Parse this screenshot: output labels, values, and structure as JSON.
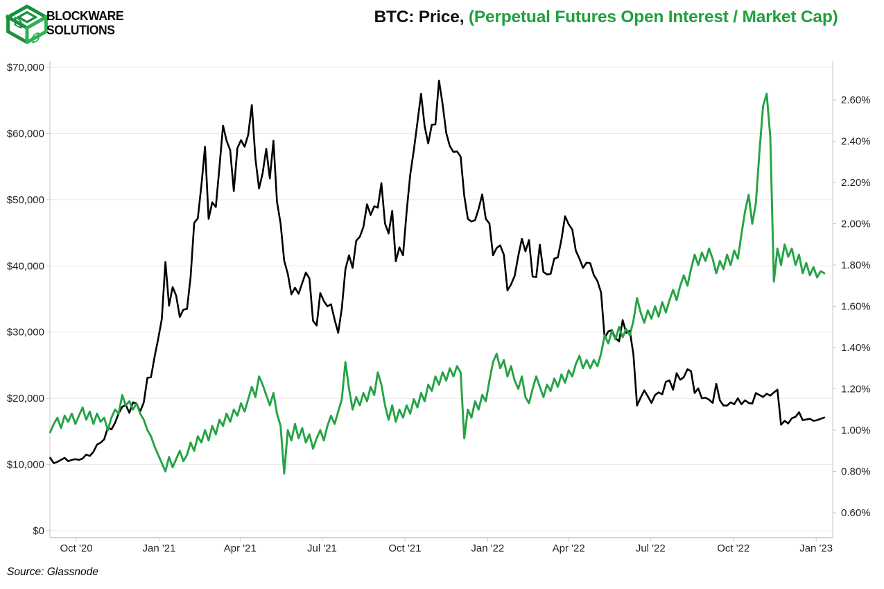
{
  "header": {
    "brand_line1": "BLOCKWARE",
    "brand_line2": "SOLUTIONS",
    "title_black": "BTC: Price, ",
    "title_green": "(Perpetual Futures Open Interest / Market Cap)"
  },
  "footer": {
    "source": "Source: Glassnode"
  },
  "colors": {
    "title_green": "#1ea13c",
    "line_black": "#000000",
    "line_green": "#24a344",
    "grid": "#e8e8e8",
    "axis_border": "#c6c6c6",
    "bottom_border": "#b9b9b9",
    "tick_text": "#1f1f1f",
    "logo_green_dark": "#18913e",
    "logo_green_light": "#2eb254"
  },
  "chart_data": {
    "type": "line",
    "title": "BTC: Price, (Perpetual Futures Open Interest / Market Cap)",
    "grid": true,
    "legend_position": "none",
    "start_date": "2020-09-02",
    "end_date": "2023-01-10",
    "step_days": 4,
    "x_ticks": [
      {
        "label": "Oct '20",
        "day": 29
      },
      {
        "label": "Jan '21",
        "day": 121
      },
      {
        "label": "Apr '21",
        "day": 211
      },
      {
        "label": "Jul '21",
        "day": 302
      },
      {
        "label": "Oct '21",
        "day": 394
      },
      {
        "label": "Jan '22",
        "day": 486
      },
      {
        "label": "Apr '22",
        "day": 576
      },
      {
        "label": "Jul '22",
        "day": 667
      },
      {
        "label": "Oct '22",
        "day": 759
      },
      {
        "label": "Jan '23",
        "day": 851
      }
    ],
    "y_left": {
      "name": "BTC Price (USD)",
      "min": 0,
      "max": 70000,
      "ticks": [
        {
          "label": "$70,000",
          "value": 70
        },
        {
          "label": "$60,000",
          "value": 60
        },
        {
          "label": "$50,000",
          "value": 50
        },
        {
          "label": "$40,000",
          "value": 40
        },
        {
          "label": "$30,000",
          "value": 30
        },
        {
          "label": "$20,000",
          "value": 20
        },
        {
          "label": "$10,000",
          "value": 10
        },
        {
          "label": "$0",
          "value": 0
        }
      ]
    },
    "y_right": {
      "name": "Perpetual Futures Open Interest / Market Cap",
      "min": 0.6,
      "max": 2.6,
      "ticks": [
        {
          "label": "2.60%",
          "value": 2.6
        },
        {
          "label": "2.40%",
          "value": 2.4
        },
        {
          "label": "2.20%",
          "value": 2.2
        },
        {
          "label": "2.00%",
          "value": 2.0
        },
        {
          "label": "1.80%",
          "value": 1.8
        },
        {
          "label": "1.60%",
          "value": 1.6
        },
        {
          "label": "1.40%",
          "value": 1.4
        },
        {
          "label": "1.20%",
          "value": 1.2
        },
        {
          "label": "1.00%",
          "value": 1.0
        },
        {
          "label": "0.80%",
          "value": 0.8
        },
        {
          "label": "0.60%",
          "value": 0.6
        }
      ]
    },
    "series": [
      {
        "name": "BTC Price",
        "axis": "left",
        "units": "USD thousands",
        "color": "#000000",
        "values": [
          11.0,
          10.2,
          10.4,
          10.7,
          11.0,
          10.5,
          10.7,
          10.8,
          10.7,
          10.9,
          11.5,
          11.3,
          11.9,
          13.0,
          13.3,
          13.8,
          15.6,
          15.3,
          16.3,
          17.7,
          18.7,
          19.0,
          17.8,
          19.4,
          19.2,
          18.0,
          19.4,
          23.1,
          23.2,
          26.3,
          29.0,
          32.0,
          40.6,
          34.0,
          36.8,
          35.5,
          32.3,
          33.4,
          33.5,
          38.3,
          46.5,
          47.2,
          52.2,
          58.0,
          47.1,
          49.6,
          48.9,
          54.9,
          61.2,
          58.9,
          57.5,
          51.3,
          57.8,
          59.0,
          58.0,
          59.8,
          64.3,
          56.2,
          51.7,
          54.0,
          57.7,
          53.2,
          58.9,
          49.7,
          46.4,
          40.8,
          38.8,
          35.7,
          36.7,
          35.8,
          37.4,
          39.0,
          38.1,
          31.7,
          31.0,
          35.9,
          34.7,
          33.9,
          34.2,
          31.9,
          29.9,
          33.6,
          39.5,
          41.6,
          39.7,
          43.8,
          44.4,
          45.9,
          49.3,
          47.7,
          49.0,
          48.8,
          52.5,
          46.4,
          44.9,
          48.3,
          40.7,
          42.8,
          41.6,
          48.2,
          53.8,
          57.5,
          61.7,
          66.0,
          61.1,
          58.5,
          61.3,
          61.4,
          68.0,
          64.4,
          60.1,
          58.1,
          57.2,
          57.3,
          56.5,
          50.6,
          47.1,
          46.7,
          46.9,
          48.6,
          50.8,
          47.1,
          46.4,
          41.6,
          42.7,
          43.1,
          41.7,
          36.3,
          37.2,
          38.5,
          41.5,
          44.1,
          42.2,
          43.9,
          38.4,
          38.3,
          43.2,
          39.1,
          38.7,
          38.8,
          41.1,
          41.3,
          44.0,
          47.5,
          46.3,
          45.5,
          42.3,
          41.1,
          39.7,
          40.5,
          40.4,
          38.6,
          37.7,
          36.0,
          29.1,
          30.1,
          30.3,
          29.1,
          28.6,
          31.8,
          29.9,
          30.2,
          26.6,
          18.9,
          20.1,
          21.2,
          20.3,
          19.3,
          20.5,
          20.9,
          20.6,
          22.5,
          22.7,
          21.3,
          23.8,
          22.8,
          23.2,
          24.4,
          24.1,
          20.8,
          21.5,
          20.0,
          20.1,
          19.8,
          19.3,
          22.2,
          19.7,
          18.9,
          18.9,
          19.4,
          19.1,
          20.0,
          19.1,
          19.7,
          19.3,
          19.2,
          20.8,
          20.5,
          20.2,
          20.7,
          20.4,
          20.9,
          21.3,
          16.0,
          16.6,
          16.2,
          17.0,
          17.2,
          17.9,
          16.7,
          16.8,
          16.9,
          16.6,
          16.7,
          16.9,
          17.1
        ]
      },
      {
        "name": "Perpetual Futures Open Interest / Market Cap",
        "axis": "right",
        "units": "percent",
        "color": "#24a344",
        "values": [
          0.99,
          1.03,
          1.06,
          1.01,
          1.07,
          1.04,
          1.08,
          1.03,
          1.07,
          1.11,
          1.05,
          1.09,
          1.03,
          1.08,
          1.04,
          1.06,
          1.0,
          1.06,
          1.1,
          1.08,
          1.17,
          1.12,
          1.14,
          1.1,
          1.13,
          1.08,
          1.05,
          1.0,
          0.97,
          0.92,
          0.88,
          0.84,
          0.8,
          0.87,
          0.82,
          0.86,
          0.9,
          0.85,
          0.88,
          0.94,
          0.9,
          0.97,
          0.94,
          1.0,
          0.95,
          1.02,
          0.98,
          1.05,
          1.02,
          1.08,
          1.04,
          1.1,
          1.07,
          1.13,
          1.09,
          1.15,
          1.21,
          1.16,
          1.26,
          1.22,
          1.17,
          1.12,
          1.18,
          1.08,
          1.02,
          0.79,
          1.0,
          0.95,
          1.03,
          0.96,
          1.01,
          0.94,
          0.98,
          0.91,
          0.96,
          1.0,
          0.95,
          1.02,
          1.07,
          1.03,
          1.09,
          1.15,
          1.33,
          1.2,
          1.1,
          1.16,
          1.12,
          1.18,
          1.14,
          1.21,
          1.17,
          1.28,
          1.22,
          1.12,
          1.05,
          1.12,
          1.04,
          1.1,
          1.06,
          1.12,
          1.08,
          1.15,
          1.11,
          1.18,
          1.14,
          1.22,
          1.19,
          1.26,
          1.22,
          1.28,
          1.24,
          1.3,
          1.26,
          1.31,
          1.28,
          0.96,
          1.1,
          1.06,
          1.14,
          1.1,
          1.17,
          1.14,
          1.24,
          1.33,
          1.37,
          1.3,
          1.34,
          1.26,
          1.31,
          1.24,
          1.2,
          1.26,
          1.16,
          1.13,
          1.2,
          1.26,
          1.21,
          1.16,
          1.22,
          1.19,
          1.25,
          1.21,
          1.27,
          1.23,
          1.29,
          1.26,
          1.32,
          1.36,
          1.3,
          1.34,
          1.3,
          1.34,
          1.31,
          1.37,
          1.46,
          1.42,
          1.48,
          1.44,
          1.5,
          1.45,
          1.49,
          1.46,
          1.53,
          1.64,
          1.57,
          1.52,
          1.58,
          1.54,
          1.6,
          1.55,
          1.62,
          1.57,
          1.63,
          1.68,
          1.63,
          1.7,
          1.75,
          1.7,
          1.78,
          1.85,
          1.8,
          1.86,
          1.82,
          1.88,
          1.83,
          1.76,
          1.82,
          1.78,
          1.85,
          1.8,
          1.87,
          1.83,
          1.95,
          2.06,
          2.14,
          2.0,
          2.1,
          2.35,
          2.57,
          2.63,
          2.42,
          1.72,
          1.88,
          1.8,
          1.9,
          1.84,
          1.88,
          1.8,
          1.85,
          1.76,
          1.81,
          1.75,
          1.79,
          1.74,
          1.77,
          1.76
        ]
      }
    ]
  }
}
